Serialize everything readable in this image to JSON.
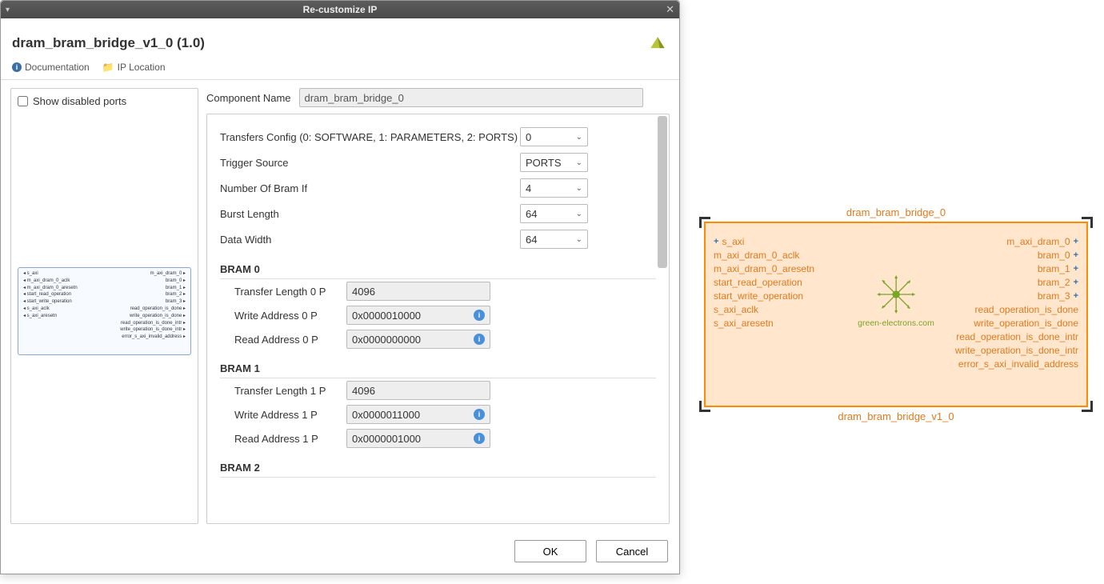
{
  "dialog": {
    "title": "Re-customize IP",
    "ip_name": "dram_bram_bridge_v1_0 (1.0)",
    "links": {
      "documentation": "Documentation",
      "ip_location": "IP Location"
    },
    "show_disabled_ports_label": "Show disabled ports",
    "component_name_label": "Component Name",
    "component_name_value": "dram_bram_bridge_0",
    "params": {
      "transfers_config": {
        "label": "Transfers Config (0: SOFTWARE, 1: PARAMETERS, 2: PORTS)",
        "value": "0"
      },
      "trigger_source": {
        "label": "Trigger Source",
        "value": "PORTS"
      },
      "num_bram_if": {
        "label": "Number Of Bram If",
        "value": "4"
      },
      "burst_length": {
        "label": "Burst Length",
        "value": "64"
      },
      "data_width": {
        "label": "Data Width",
        "value": "64"
      }
    },
    "brams": [
      {
        "heading": "BRAM 0",
        "rows": [
          {
            "label": "Transfer Length 0 P",
            "value": "4096",
            "info": false
          },
          {
            "label": "Write Address 0 P",
            "value": "0x0000010000",
            "info": true
          },
          {
            "label": "Read Address 0 P",
            "value": "0x0000000000",
            "info": true
          }
        ]
      },
      {
        "heading": "BRAM 1",
        "rows": [
          {
            "label": "Transfer Length 1 P",
            "value": "4096",
            "info": false
          },
          {
            "label": "Write Address 1 P",
            "value": "0x0000011000",
            "info": true
          },
          {
            "label": "Read Address 1 P",
            "value": "0x0000001000",
            "info": true
          }
        ]
      },
      {
        "heading": "BRAM 2",
        "rows": []
      }
    ],
    "buttons": {
      "ok": "OK",
      "cancel": "Cancel"
    },
    "preview": {
      "left": [
        "s_axi",
        "m_axi_dram_0_aclk",
        "m_axi_dram_0_aresetn",
        "start_read_operation",
        "start_write_operation",
        "s_axi_aclk",
        "s_axi_aresetn"
      ],
      "right": [
        "m_axi_dram_0",
        "bram_0",
        "bram_1",
        "bram_2",
        "bram_3",
        "read_operation_is_done",
        "write_operation_is_done",
        "read_operation_is_done_intr",
        "write_operation_is_done_intr",
        "error_s_axi_invalid_address"
      ]
    }
  },
  "ipblock": {
    "name_top": "dram_bram_bridge_0",
    "name_bot": "dram_bram_bridge_v1_0",
    "logo_text": "green-electrons.com",
    "colors": {
      "border": "#ff8c00",
      "fill": "#ffe6cc",
      "text": "#e07a1f",
      "logo": "#7ba428"
    },
    "ports_left": [
      {
        "label": "s_axi",
        "bus": true
      },
      {
        "label": "m_axi_dram_0_aclk",
        "bus": false
      },
      {
        "label": "m_axi_dram_0_aresetn",
        "bus": false
      },
      {
        "label": "start_read_operation",
        "bus": false
      },
      {
        "label": "start_write_operation",
        "bus": false
      },
      {
        "label": "s_axi_aclk",
        "bus": false
      },
      {
        "label": "s_axi_aresetn",
        "bus": false
      }
    ],
    "ports_right": [
      {
        "label": "m_axi_dram_0",
        "bus": true
      },
      {
        "label": "bram_0",
        "bus": true
      },
      {
        "label": "bram_1",
        "bus": true
      },
      {
        "label": "bram_2",
        "bus": true
      },
      {
        "label": "bram_3",
        "bus": true
      },
      {
        "label": "read_operation_is_done",
        "bus": false
      },
      {
        "label": "write_operation_is_done",
        "bus": false
      },
      {
        "label": "read_operation_is_done_intr",
        "bus": false
      },
      {
        "label": "write_operation_is_done_intr",
        "bus": false
      },
      {
        "label": "error_s_axi_invalid_address",
        "bus": false
      }
    ]
  }
}
